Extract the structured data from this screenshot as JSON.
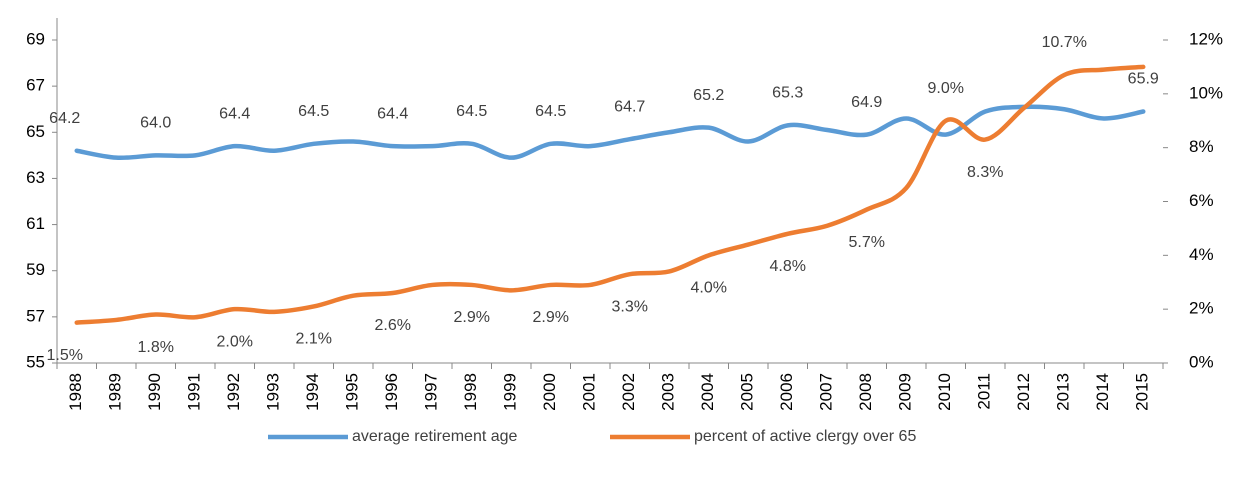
{
  "chart_data": {
    "type": "line",
    "categories": [
      "1988",
      "1989",
      "1990",
      "1991",
      "1992",
      "1993",
      "1994",
      "1995",
      "1996",
      "1997",
      "1998",
      "1999",
      "2000",
      "2001",
      "2002",
      "2003",
      "2004",
      "2005",
      "2006",
      "2007",
      "2008",
      "2009",
      "2010",
      "2011",
      "2012",
      "2013",
      "2014",
      "2015"
    ],
    "series": [
      {
        "name": "average retirement age",
        "color": "#5b9bd5",
        "axis": "y",
        "values": [
          64.2,
          63.9,
          64.0,
          64.0,
          64.4,
          64.2,
          64.5,
          64.6,
          64.4,
          64.4,
          64.5,
          63.9,
          64.5,
          64.4,
          64.7,
          65.0,
          65.2,
          64.6,
          65.3,
          65.1,
          64.9,
          65.6,
          64.9,
          65.9,
          66.1,
          66.0,
          65.6,
          65.9
        ],
        "value_labels": [
          "64.2",
          null,
          "64.0",
          null,
          "64.4",
          null,
          "64.5",
          null,
          "64.4",
          null,
          "64.5",
          null,
          "64.5",
          null,
          "64.7",
          null,
          "65.2",
          null,
          "65.3",
          null,
          "64.9",
          null,
          null,
          null,
          null,
          null,
          null,
          "65.9"
        ]
      },
      {
        "name": "percent of active clergy over 65",
        "color": "#ed7d31",
        "axis": "y2",
        "values": [
          1.5,
          1.6,
          1.8,
          1.7,
          2.0,
          1.9,
          2.1,
          2.5,
          2.6,
          2.9,
          2.9,
          2.7,
          2.9,
          2.9,
          3.3,
          3.4,
          4.0,
          4.4,
          4.8,
          5.1,
          5.7,
          6.5,
          9.0,
          8.3,
          9.5,
          10.7,
          10.9,
          11.0
        ],
        "value_labels": [
          "1.5%",
          null,
          "1.8%",
          null,
          "2.0%",
          null,
          "2.1%",
          null,
          "2.6%",
          null,
          "2.9%",
          null,
          "2.9%",
          null,
          "3.3%",
          null,
          "4.0%",
          null,
          "4.8%",
          null,
          "5.7%",
          null,
          "9.0%",
          "8.3%",
          null,
          "10.7%",
          null,
          null
        ]
      }
    ],
    "ylim": [
      55,
      69
    ],
    "yticks": [
      55,
      57,
      59,
      61,
      63,
      65,
      67,
      69
    ],
    "y2lim": [
      0,
      12
    ],
    "y2ticks": [
      {
        "value": 0,
        "label": "0%"
      },
      {
        "value": 2,
        "label": "2%"
      },
      {
        "value": 4,
        "label": "4%"
      },
      {
        "value": 6,
        "label": "6%"
      },
      {
        "value": 8,
        "label": "8%"
      },
      {
        "value": 10,
        "label": "10%"
      },
      {
        "value": 12,
        "label": "12%"
      }
    ],
    "legend": "bottom"
  }
}
